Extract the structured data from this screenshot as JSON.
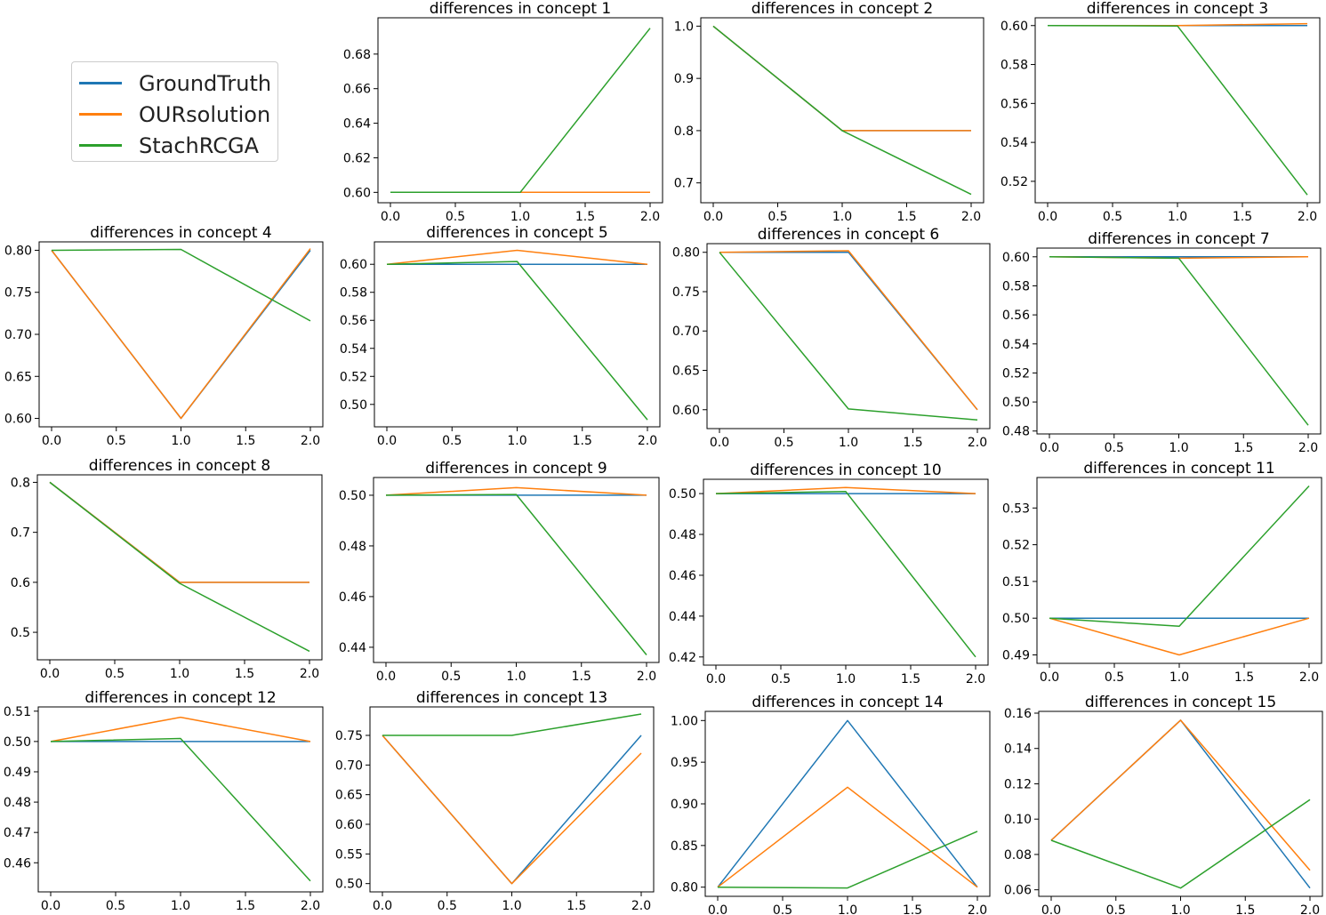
{
  "legend": {
    "items": [
      {
        "label": "GroundTruth",
        "color": "#1f77b4"
      },
      {
        "label": "OURsolution",
        "color": "#ff7f0e"
      },
      {
        "label": "StachRCGA",
        "color": "#2ca02c"
      }
    ]
  },
  "chart_data": [
    {
      "type": "line",
      "title": "differences in concept 1",
      "x": [
        0,
        1,
        2
      ],
      "xticks": [
        "0.0",
        "0.5",
        "1.0",
        "1.5",
        "2.0"
      ],
      "ylim": [
        0.594,
        0.701
      ],
      "yticks": [
        0.6,
        0.62,
        0.64,
        0.66,
        0.68
      ],
      "ytick_labels": [
        "0.60",
        "0.62",
        "0.64",
        "0.66",
        "0.68"
      ],
      "series": [
        {
          "name": "GroundTruth",
          "values": [
            0.6,
            0.6,
            0.6
          ]
        },
        {
          "name": "OURsolution",
          "values": [
            0.6,
            0.6,
            0.6
          ]
        },
        {
          "name": "StachRCGA",
          "values": [
            0.6,
            0.6,
            0.695
          ]
        }
      ]
    },
    {
      "type": "line",
      "title": "differences in concept 2",
      "x": [
        0,
        1,
        2
      ],
      "xticks": [
        "0.0",
        "0.5",
        "1.0",
        "1.5",
        "2.0"
      ],
      "ylim": [
        0.662,
        1.016
      ],
      "yticks": [
        0.7,
        0.8,
        0.9,
        1.0
      ],
      "ytick_labels": [
        "0.7",
        "0.8",
        "0.9",
        "1.0"
      ],
      "series": [
        {
          "name": "GroundTruth",
          "values": [
            1.0,
            0.8,
            0.8
          ]
        },
        {
          "name": "OURsolution",
          "values": [
            1.0,
            0.8,
            0.8
          ]
        },
        {
          "name": "StachRCGA",
          "values": [
            1.0,
            0.8,
            0.678
          ]
        }
      ]
    },
    {
      "type": "line",
      "title": "differences in concept 3",
      "x": [
        0,
        1,
        2
      ],
      "xticks": [
        "0.0",
        "0.5",
        "1.0",
        "1.5",
        "2.0"
      ],
      "ylim": [
        0.509,
        0.604
      ],
      "yticks": [
        0.52,
        0.54,
        0.56,
        0.58,
        0.6
      ],
      "ytick_labels": [
        "0.52",
        "0.54",
        "0.56",
        "0.58",
        "0.60"
      ],
      "series": [
        {
          "name": "GroundTruth",
          "values": [
            0.6,
            0.6,
            0.6
          ]
        },
        {
          "name": "OURsolution",
          "values": [
            0.6,
            0.6,
            0.601
          ]
        },
        {
          "name": "StachRCGA",
          "values": [
            0.6,
            0.5998,
            0.513
          ]
        }
      ]
    },
    {
      "type": "line",
      "title": "differences in concept 4",
      "x": [
        0,
        1,
        2
      ],
      "xticks": [
        "0.0",
        "0.5",
        "1.0",
        "1.5",
        "2.0"
      ],
      "ylim": [
        0.59,
        0.81
      ],
      "yticks": [
        0.6,
        0.65,
        0.7,
        0.75,
        0.8
      ],
      "ytick_labels": [
        "0.60",
        "0.65",
        "0.70",
        "0.75",
        "0.80"
      ],
      "series": [
        {
          "name": "GroundTruth",
          "values": [
            0.8,
            0.6,
            0.8
          ]
        },
        {
          "name": "OURsolution",
          "values": [
            0.8,
            0.6,
            0.802
          ]
        },
        {
          "name": "StachRCGA",
          "values": [
            0.8,
            0.801,
            0.716
          ]
        }
      ]
    },
    {
      "type": "line",
      "title": "differences in concept 5",
      "x": [
        0,
        1,
        2
      ],
      "xticks": [
        "0.0",
        "0.5",
        "1.0",
        "1.5",
        "2.0"
      ],
      "ylim": [
        0.484,
        0.616
      ],
      "yticks": [
        0.5,
        0.52,
        0.54,
        0.56,
        0.58,
        0.6
      ],
      "ytick_labels": [
        "0.50",
        "0.52",
        "0.54",
        "0.56",
        "0.58",
        "0.60"
      ],
      "series": [
        {
          "name": "GroundTruth",
          "values": [
            0.6,
            0.6,
            0.6
          ]
        },
        {
          "name": "OURsolution",
          "values": [
            0.6,
            0.61,
            0.6
          ]
        },
        {
          "name": "StachRCGA",
          "values": [
            0.6,
            0.602,
            0.489
          ]
        }
      ]
    },
    {
      "type": "line",
      "title": "differences in concept 6",
      "x": [
        0,
        1,
        2
      ],
      "xticks": [
        "0.0",
        "0.5",
        "1.0",
        "1.5",
        "2.0"
      ],
      "ylim": [
        0.576,
        0.811
      ],
      "yticks": [
        0.6,
        0.65,
        0.7,
        0.75,
        0.8
      ],
      "ytick_labels": [
        "0.60",
        "0.65",
        "0.70",
        "0.75",
        "0.80"
      ],
      "series": [
        {
          "name": "GroundTruth",
          "values": [
            0.8,
            0.8,
            0.6
          ]
        },
        {
          "name": "OURsolution",
          "values": [
            0.8,
            0.802,
            0.6
          ]
        },
        {
          "name": "StachRCGA",
          "values": [
            0.8,
            0.601,
            0.587
          ]
        }
      ]
    },
    {
      "type": "line",
      "title": "differences in concept 7",
      "x": [
        0,
        1,
        2
      ],
      "xticks": [
        "0.0",
        "0.5",
        "1.0",
        "1.5",
        "2.0"
      ],
      "ylim": [
        0.478,
        0.606
      ],
      "yticks": [
        0.48,
        0.5,
        0.52,
        0.54,
        0.56,
        0.58,
        0.6
      ],
      "ytick_labels": [
        "0.48",
        "0.50",
        "0.52",
        "0.54",
        "0.56",
        "0.58",
        "0.60"
      ],
      "series": [
        {
          "name": "GroundTruth",
          "values": [
            0.6,
            0.6,
            0.6
          ]
        },
        {
          "name": "OURsolution",
          "values": [
            0.6,
            0.599,
            0.6
          ]
        },
        {
          "name": "StachRCGA",
          "values": [
            0.6,
            0.599,
            0.484
          ]
        }
      ]
    },
    {
      "type": "line",
      "title": "differences in concept 8",
      "x": [
        0,
        1,
        2
      ],
      "xticks": [
        "0.0",
        "0.5",
        "1.0",
        "1.5",
        "2.0"
      ],
      "ylim": [
        0.445,
        0.815
      ],
      "yticks": [
        0.5,
        0.6,
        0.7,
        0.8
      ],
      "ytick_labels": [
        "0.5",
        "0.6",
        "0.7",
        "0.8"
      ],
      "series": [
        {
          "name": "GroundTruth",
          "values": [
            0.8,
            0.6,
            0.6
          ]
        },
        {
          "name": "OURsolution",
          "values": [
            0.8,
            0.6,
            0.6
          ]
        },
        {
          "name": "StachRCGA",
          "values": [
            0.8,
            0.598,
            0.462
          ]
        }
      ]
    },
    {
      "type": "line",
      "title": "differences in concept 9",
      "x": [
        0,
        1,
        2
      ],
      "xticks": [
        "0.0",
        "0.5",
        "1.0",
        "1.5",
        "2.0"
      ],
      "ylim": [
        0.434,
        0.507
      ],
      "yticks": [
        0.44,
        0.46,
        0.48,
        0.5
      ],
      "ytick_labels": [
        "0.44",
        "0.46",
        "0.48",
        "0.50"
      ],
      "series": [
        {
          "name": "GroundTruth",
          "values": [
            0.5,
            0.5,
            0.5
          ]
        },
        {
          "name": "OURsolution",
          "values": [
            0.5,
            0.503,
            0.5
          ]
        },
        {
          "name": "StachRCGA",
          "values": [
            0.5,
            0.5003,
            0.437
          ]
        }
      ]
    },
    {
      "type": "line",
      "title": "differences in concept 10",
      "x": [
        0,
        1,
        2
      ],
      "xticks": [
        "0.0",
        "0.5",
        "1.0",
        "1.5",
        "2.0"
      ],
      "ylim": [
        0.416,
        0.507
      ],
      "yticks": [
        0.42,
        0.44,
        0.46,
        0.48,
        0.5
      ],
      "ytick_labels": [
        "0.42",
        "0.44",
        "0.46",
        "0.48",
        "0.50"
      ],
      "series": [
        {
          "name": "GroundTruth",
          "values": [
            0.5,
            0.5,
            0.5
          ]
        },
        {
          "name": "OURsolution",
          "values": [
            0.5,
            0.503,
            0.5
          ]
        },
        {
          "name": "StachRCGA",
          "values": [
            0.5,
            0.501,
            0.42
          ]
        }
      ]
    },
    {
      "type": "line",
      "title": "differences in concept 11",
      "x": [
        0,
        1,
        2
      ],
      "xticks": [
        "0.0",
        "0.5",
        "1.0",
        "1.5",
        "2.0"
      ],
      "ylim": [
        0.4877,
        0.5383
      ],
      "yticks": [
        0.49,
        0.5,
        0.51,
        0.52,
        0.53
      ],
      "ytick_labels": [
        "0.49",
        "0.50",
        "0.51",
        "0.52",
        "0.53"
      ],
      "series": [
        {
          "name": "GroundTruth",
          "values": [
            0.5,
            0.5,
            0.5
          ]
        },
        {
          "name": "OURsolution",
          "values": [
            0.5,
            0.49,
            0.5
          ]
        },
        {
          "name": "StachRCGA",
          "values": [
            0.5,
            0.4978,
            0.536
          ]
        }
      ]
    },
    {
      "type": "line",
      "title": "differences in concept 12",
      "x": [
        0,
        1,
        2
      ],
      "xticks": [
        "0.0",
        "0.5",
        "1.0",
        "1.5",
        "2.0"
      ],
      "ylim": [
        0.4504,
        0.5114
      ],
      "yticks": [
        0.46,
        0.47,
        0.48,
        0.49,
        0.5,
        0.51
      ],
      "ytick_labels": [
        "0.46",
        "0.47",
        "0.48",
        "0.49",
        "0.50",
        "0.51"
      ],
      "series": [
        {
          "name": "GroundTruth",
          "values": [
            0.5,
            0.5,
            0.5
          ]
        },
        {
          "name": "OURsolution",
          "values": [
            0.5,
            0.508,
            0.5
          ]
        },
        {
          "name": "StachRCGA",
          "values": [
            0.5,
            0.501,
            0.454
          ]
        }
      ]
    },
    {
      "type": "line",
      "title": "differences in concept 13",
      "x": [
        0,
        1,
        2
      ],
      "xticks": [
        "0.0",
        "0.5",
        "1.0",
        "1.5",
        "2.0"
      ],
      "ylim": [
        0.486,
        0.798
      ],
      "yticks": [
        0.5,
        0.55,
        0.6,
        0.65,
        0.7,
        0.75
      ],
      "ytick_labels": [
        "0.50",
        "0.55",
        "0.60",
        "0.65",
        "0.70",
        "0.75"
      ],
      "series": [
        {
          "name": "GroundTruth",
          "values": [
            0.75,
            0.5,
            0.75
          ]
        },
        {
          "name": "OURsolution",
          "values": [
            0.75,
            0.5,
            0.72
          ]
        },
        {
          "name": "StachRCGA",
          "values": [
            0.75,
            0.75,
            0.786
          ]
        }
      ]
    },
    {
      "type": "line",
      "title": "differences in concept 14",
      "x": [
        0,
        1,
        2
      ],
      "xticks": [
        "0.0",
        "0.5",
        "1.0",
        "1.5",
        "2.0"
      ],
      "ylim": [
        0.789,
        1.011
      ],
      "yticks": [
        0.8,
        0.85,
        0.9,
        0.95,
        1.0
      ],
      "ytick_labels": [
        "0.80",
        "0.85",
        "0.90",
        "0.95",
        "1.00"
      ],
      "series": [
        {
          "name": "GroundTruth",
          "values": [
            0.8,
            1.0,
            0.8
          ]
        },
        {
          "name": "OURsolution",
          "values": [
            0.8,
            0.92,
            0.8
          ]
        },
        {
          "name": "StachRCGA",
          "values": [
            0.8,
            0.799,
            0.867
          ]
        }
      ]
    },
    {
      "type": "line",
      "title": "differences in concept 15",
      "x": [
        0,
        1,
        2
      ],
      "xticks": [
        "0.0",
        "0.5",
        "1.0",
        "1.5",
        "2.0"
      ],
      "ylim": [
        0.0563,
        0.161
      ],
      "yticks": [
        0.06,
        0.08,
        0.1,
        0.12,
        0.14,
        0.16
      ],
      "ytick_labels": [
        "0.06",
        "0.08",
        "0.10",
        "0.12",
        "0.14",
        "0.16"
      ],
      "series": [
        {
          "name": "GroundTruth",
          "values": [
            0.088,
            0.156,
            0.061
          ]
        },
        {
          "name": "OURsolution",
          "values": [
            0.088,
            0.156,
            0.071
          ]
        },
        {
          "name": "StachRCGA",
          "values": [
            0.088,
            0.061,
            0.111
          ]
        }
      ]
    }
  ]
}
